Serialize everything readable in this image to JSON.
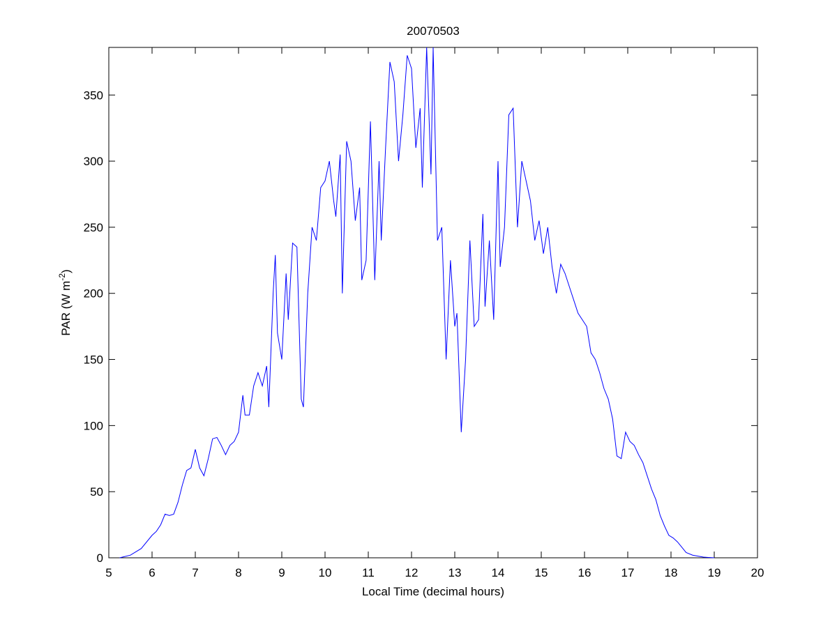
{
  "chart_data": {
    "type": "line",
    "title": "20070503",
    "xlabel": "Local Time (decimal hours)",
    "ylabel": {
      "text": "PAR (W m",
      "superscript": "-2",
      "suffix": ")"
    },
    "xlim": [
      5,
      20
    ],
    "ylim": [
      0,
      386
    ],
    "xticks": [
      5,
      6,
      7,
      8,
      9,
      10,
      11,
      12,
      13,
      14,
      15,
      16,
      17,
      18,
      19,
      20
    ],
    "yticks": [
      0,
      50,
      100,
      150,
      200,
      250,
      300,
      350
    ],
    "grid": false,
    "series": [
      {
        "color": "#0000ff",
        "x": [
          5.25,
          5.5,
          5.75,
          6.0,
          6.1,
          6.2,
          6.3,
          6.4,
          6.5,
          6.6,
          6.7,
          6.8,
          6.9,
          7.0,
          7.1,
          7.2,
          7.3,
          7.4,
          7.5,
          7.6,
          7.7,
          7.8,
          7.9,
          8.0,
          8.1,
          8.15,
          8.25,
          8.35,
          8.45,
          8.55,
          8.65,
          8.7,
          8.8,
          8.85,
          8.9,
          9.0,
          9.1,
          9.15,
          9.25,
          9.35,
          9.45,
          9.5,
          9.6,
          9.7,
          9.8,
          9.9,
          10.0,
          10.1,
          10.2,
          10.25,
          10.35,
          10.4,
          10.5,
          10.6,
          10.7,
          10.8,
          10.85,
          10.95,
          11.05,
          11.15,
          11.25,
          11.3,
          11.4,
          11.5,
          11.6,
          11.7,
          11.8,
          11.9,
          12.0,
          12.1,
          12.2,
          12.25,
          12.35,
          12.45,
          12.5,
          12.6,
          12.7,
          12.8,
          12.9,
          13.0,
          13.05,
          13.15,
          13.25,
          13.35,
          13.45,
          13.55,
          13.65,
          13.7,
          13.8,
          13.9,
          14.0,
          14.05,
          14.15,
          14.25,
          14.35,
          14.45,
          14.55,
          14.65,
          14.75,
          14.85,
          14.95,
          15.05,
          15.15,
          15.25,
          15.35,
          15.45,
          15.55,
          15.65,
          15.75,
          15.85,
          15.95,
          16.05,
          16.15,
          16.25,
          16.35,
          16.45,
          16.55,
          16.65,
          16.75,
          16.85,
          16.95,
          17.05,
          17.15,
          17.25,
          17.35,
          17.45,
          17.55,
          17.65,
          17.75,
          17.85,
          17.95,
          18.05,
          18.15,
          18.25,
          18.35,
          18.5,
          18.75,
          19.0
        ],
        "values": [
          0,
          2,
          7,
          17,
          20,
          25,
          33,
          32,
          33,
          42,
          55,
          66,
          68,
          82,
          68,
          62,
          75,
          90,
          91,
          85,
          78,
          85,
          88,
          95,
          123,
          108,
          108,
          130,
          140,
          130,
          145,
          114,
          200,
          229,
          170,
          150,
          215,
          180,
          238,
          235,
          120,
          114,
          200,
          250,
          240,
          280,
          285,
          300,
          270,
          258,
          305,
          200,
          315,
          300,
          255,
          280,
          210,
          225,
          330,
          210,
          300,
          240,
          310,
          375,
          360,
          300,
          335,
          380,
          370,
          310,
          340,
          280,
          386,
          290,
          386,
          240,
          250,
          150,
          225,
          175,
          185,
          95,
          150,
          240,
          175,
          180,
          260,
          190,
          240,
          180,
          300,
          220,
          250,
          335,
          340,
          250,
          300,
          285,
          270,
          240,
          255,
          230,
          250,
          220,
          200,
          222,
          215,
          205,
          195,
          185,
          180,
          175,
          155,
          150,
          140,
          128,
          120,
          105,
          77,
          75,
          95,
          88,
          85,
          78,
          72,
          62,
          52,
          44,
          32,
          24,
          17,
          15,
          12,
          8,
          4,
          2,
          0.5,
          0
        ]
      }
    ]
  }
}
